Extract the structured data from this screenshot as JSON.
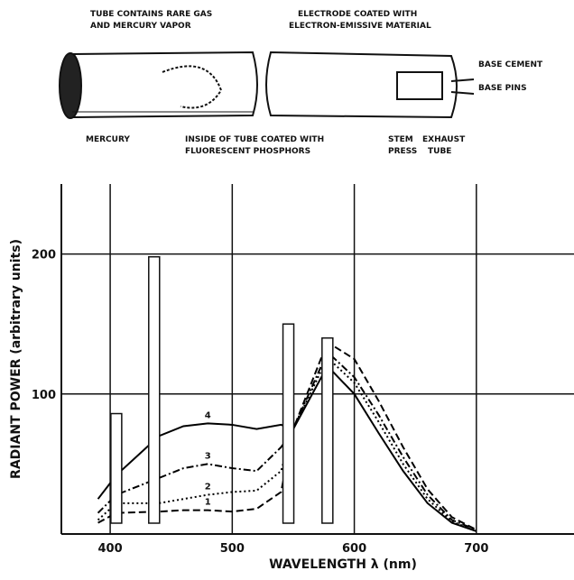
{
  "diagram": {
    "labels": [
      "TUBE CONTAINS RARE GAS",
      "AND MERCURY VAPOR",
      "ELECTRODE COATED WITH",
      "ELECTRON-EMISSIVE MATERIAL",
      "BASE CEMENT",
      "BASE PINS",
      "MERCURY",
      "INSIDE OF TUBE COATED WITH",
      "FLUORESCENT PHOSPHORS",
      "STEM",
      "PRESS",
      "EXHAUST",
      "TUBE"
    ]
  },
  "chart_data": {
    "type": "line",
    "xlabel": "WAVELENGTH λ (nm)",
    "ylabel": "RADIANT POWER (arbitrary units)",
    "x": [
      390,
      405,
      440,
      460,
      480,
      500,
      520,
      540,
      550,
      578,
      600,
      620,
      640,
      660,
      680,
      700
    ],
    "series": [
      {
        "name": "1",
        "color": "#000000",
        "style": "dashed",
        "values": [
          8,
          15,
          16,
          17,
          17,
          16,
          18,
          30,
          75,
          137,
          125,
          95,
          62,
          32,
          12,
          3
        ]
      },
      {
        "name": "2",
        "color": "#000000",
        "style": "dotted",
        "values": [
          10,
          22,
          22,
          25,
          28,
          30,
          31,
          45,
          75,
          126,
          108,
          80,
          50,
          25,
          9,
          2
        ]
      },
      {
        "name": "3",
        "color": "#000000",
        "style": "dashdot",
        "values": [
          15,
          28,
          40,
          47,
          50,
          47,
          45,
          62,
          75,
          130,
          112,
          85,
          55,
          28,
          10,
          3
        ]
      },
      {
        "name": "4",
        "color": "#000000",
        "style": "solid",
        "values": [
          25,
          42,
          70,
          77,
          79,
          78,
          75,
          78,
          75,
          120,
          100,
          72,
          45,
          22,
          8,
          2
        ]
      }
    ],
    "mercury_lines": {
      "x": [
        405,
        436,
        546,
        578
      ],
      "values": [
        86,
        198,
        150,
        140
      ]
    },
    "xlim": [
      360,
      780
    ],
    "ylim": [
      0,
      250
    ],
    "xticks": [
      400,
      500,
      600,
      700
    ],
    "yticks": [
      100,
      200
    ],
    "grid": true
  }
}
